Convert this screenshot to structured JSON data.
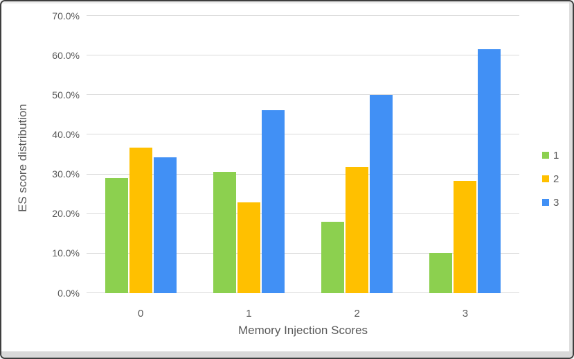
{
  "chart_data": {
    "type": "bar",
    "title": "",
    "xlabel": "Memory Injection Scores",
    "ylabel": "ES score distribution",
    "categories": [
      "0",
      "1",
      "2",
      "3"
    ],
    "series": [
      {
        "name": "1",
        "color": "#8CD04F",
        "values": [
          29.0,
          30.7,
          18.1,
          10.1
        ]
      },
      {
        "name": "2",
        "color": "#FFC000",
        "values": [
          36.7,
          23.0,
          31.8,
          28.3
        ]
      },
      {
        "name": "3",
        "color": "#4190F5",
        "values": [
          34.3,
          46.2,
          50.0,
          61.6
        ]
      }
    ],
    "ylim": [
      0,
      70
    ],
    "ytick_step": 10,
    "ytick_labels": [
      "0.0%",
      "10.0%",
      "20.0%",
      "30.0%",
      "40.0%",
      "50.0%",
      "60.0%",
      "70.0%"
    ],
    "value_format": "percent",
    "grid": true,
    "legend_position": "right",
    "legend_entries": [
      "1",
      "2",
      "3"
    ]
  },
  "colors": {
    "grid": "#D9D9D9",
    "axis_text": "#595959",
    "frame_border": "#3E3E3E",
    "edge_strip": "#DCDCDC"
  }
}
